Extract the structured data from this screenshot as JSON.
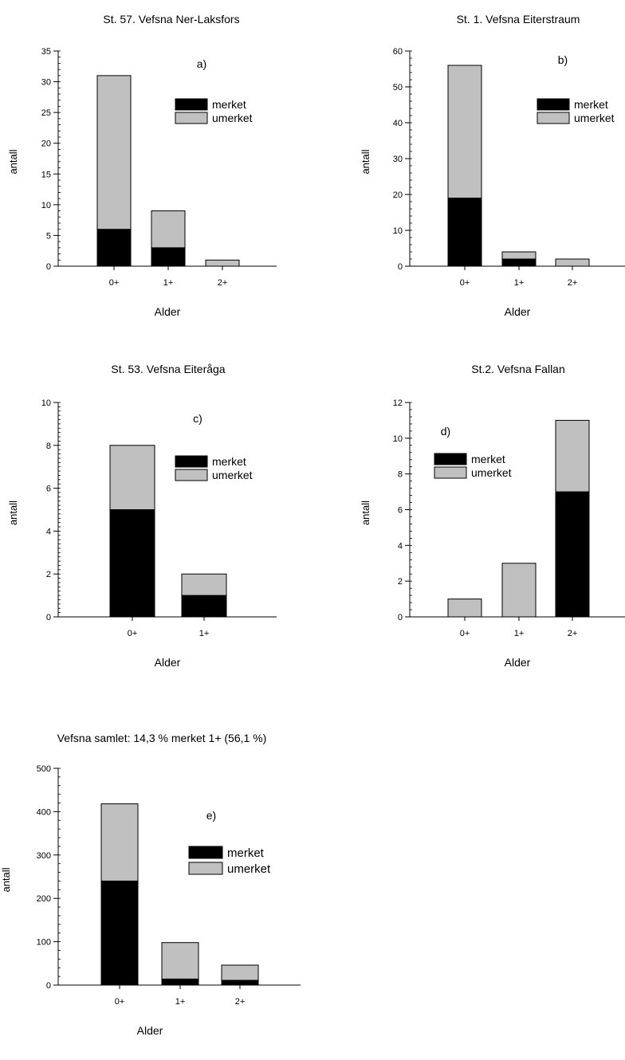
{
  "colors": {
    "merket": "#000000",
    "umerket": "#c0c0c0",
    "outline": "#000000"
  },
  "chart_data": [
    {
      "type": "bar",
      "stacked": true,
      "title": "St. 57. Vefsna Ner-Laksfors",
      "panel_label": "a)",
      "xlabel": "Alder",
      "ylabel": "antall",
      "ylim": [
        0,
        35
      ],
      "major_ticks": [
        0,
        5,
        10,
        15,
        20,
        25,
        30,
        35
      ],
      "minor_step": 1,
      "categories": [
        "0+",
        "1+",
        "2+"
      ],
      "series": [
        {
          "name": "merket",
          "values": [
            6,
            3,
            0
          ]
        },
        {
          "name": "umerket",
          "values": [
            25,
            6,
            1
          ]
        }
      ],
      "legend": "top-right"
    },
    {
      "type": "bar",
      "stacked": true,
      "title": "St. 1. Vefsna Eiterstraum",
      "panel_label": "b)",
      "xlabel": "Alder",
      "ylabel": "antall",
      "ylim": [
        0,
        60
      ],
      "major_ticks": [
        0,
        10,
        20,
        30,
        40,
        50,
        60
      ],
      "minor_step": 2,
      "categories": [
        "0+",
        "1+",
        "2+"
      ],
      "series": [
        {
          "name": "merket",
          "values": [
            19,
            2,
            0
          ]
        },
        {
          "name": "umerket",
          "values": [
            37,
            2,
            2
          ]
        }
      ],
      "legend": "top-right"
    },
    {
      "type": "bar",
      "stacked": true,
      "title": "St. 53. Vefsna Eiteråga",
      "panel_label": "c)",
      "xlabel": "Alder",
      "ylabel": "antall",
      "ylim": [
        0,
        10
      ],
      "major_ticks": [
        0,
        2,
        4,
        6,
        8,
        10
      ],
      "minor_step": 0.2,
      "categories": [
        "0+",
        "1+"
      ],
      "series": [
        {
          "name": "merket",
          "values": [
            5,
            1
          ]
        },
        {
          "name": "umerket",
          "values": [
            3,
            1
          ]
        }
      ],
      "legend": "top-right"
    },
    {
      "type": "bar",
      "stacked": true,
      "title": "St.2. Vefsna Fallan",
      "panel_label": "d)",
      "xlabel": "Alder",
      "ylabel": "antall",
      "ylim": [
        0,
        12
      ],
      "major_ticks": [
        0,
        2,
        4,
        6,
        8,
        10,
        12
      ],
      "minor_step": 0.4,
      "categories": [
        "0+",
        "1+",
        "2+"
      ],
      "series": [
        {
          "name": "merket",
          "values": [
            0,
            0,
            7
          ]
        },
        {
          "name": "umerket",
          "values": [
            1,
            3,
            4
          ]
        }
      ],
      "legend": "top-left"
    },
    {
      "type": "bar",
      "stacked": true,
      "title": "Vefsna samlet: 14,3 % merket 1+ (56,1 %)",
      "panel_label": "e)",
      "xlabel": "Alder",
      "ylabel": "antall",
      "ylim": [
        0,
        500
      ],
      "major_ticks": [
        0,
        100,
        200,
        300,
        400,
        500
      ],
      "minor_step": 20,
      "categories": [
        "0+",
        "1+",
        "2+"
      ],
      "series": [
        {
          "name": "merket",
          "values": [
            240,
            14,
            11
          ]
        },
        {
          "name": "umerket",
          "values": [
            178,
            84,
            35
          ]
        }
      ],
      "legend": "top-right"
    }
  ]
}
